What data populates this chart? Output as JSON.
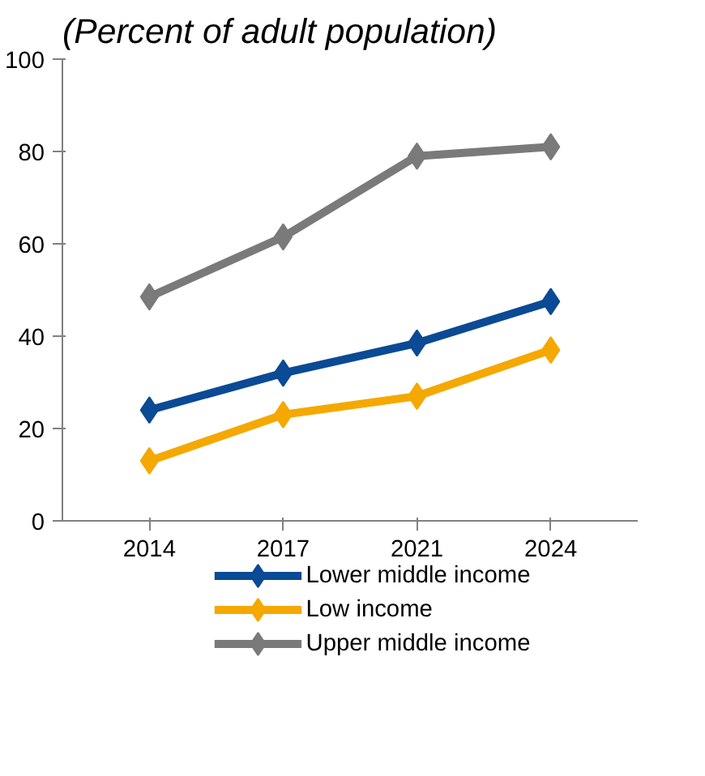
{
  "chart_data": {
    "type": "line",
    "title": "(Percent of adult population)",
    "categories": [
      "2014",
      "2017",
      "2021",
      "2024"
    ],
    "series": [
      {
        "name": "Lower middle income",
        "color": "#0b4a94",
        "values": [
          24,
          32,
          38.5,
          47.5
        ]
      },
      {
        "name": "Low income",
        "color": "#f5a800",
        "values": [
          13,
          23,
          27,
          37
        ]
      },
      {
        "name": "Upper middle income",
        "color": "#7a7a7a",
        "values": [
          48.5,
          61.5,
          79,
          81
        ]
      }
    ],
    "ylim": [
      0,
      100
    ],
    "yticks": [
      0,
      20,
      40,
      60,
      80,
      100
    ],
    "grid": false,
    "legend": "bottom",
    "marker": "diamond",
    "line_style": "solid"
  }
}
